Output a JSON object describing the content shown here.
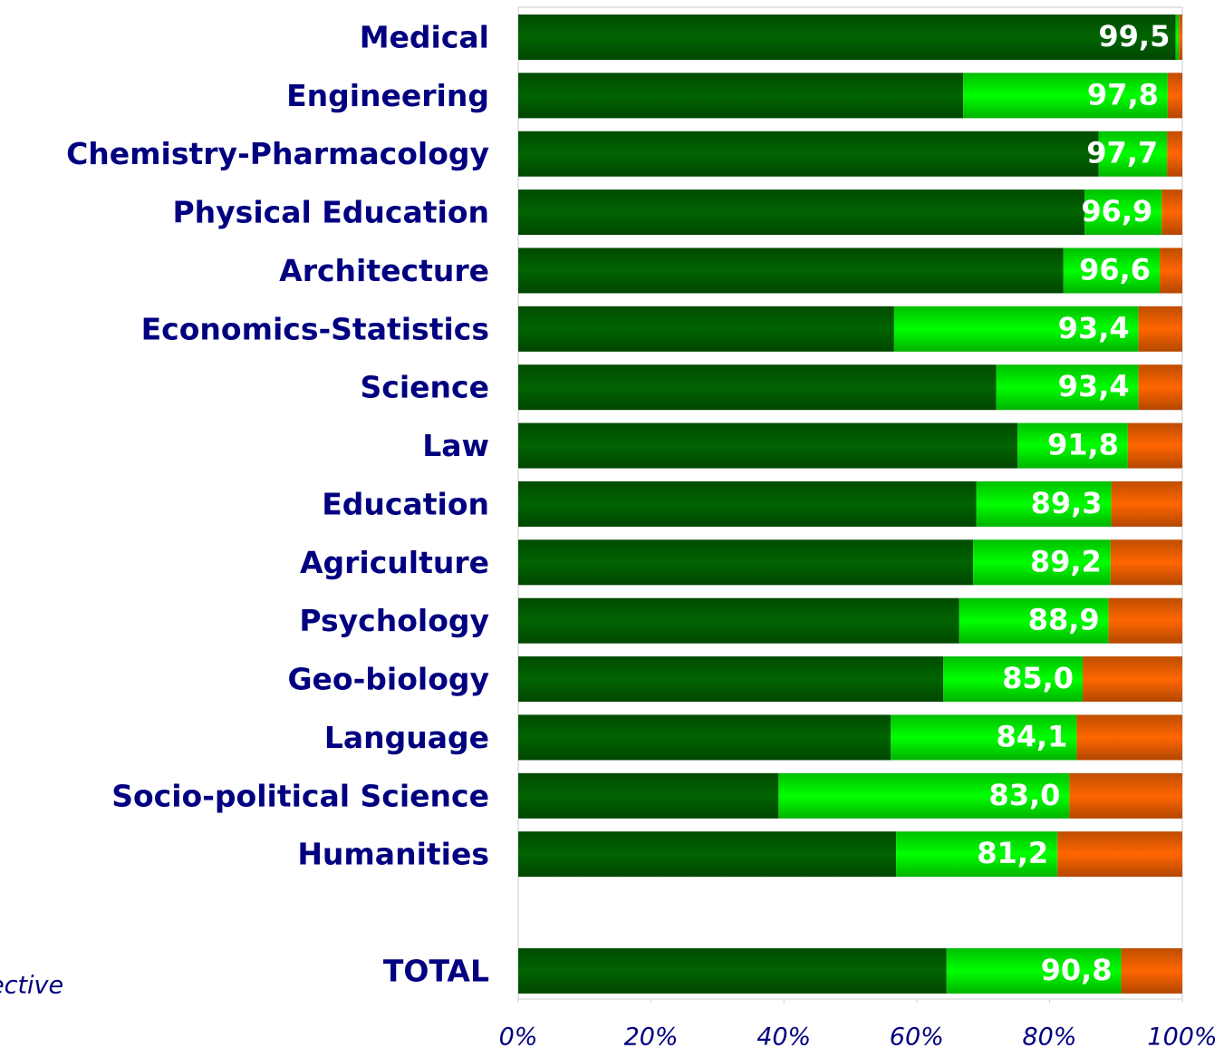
{
  "chart_data": {
    "type": "stacked-bar-horizontal",
    "categories": [
      "Medical",
      "Engineering",
      "Chemistry-Pharmacology",
      "Physical Education",
      "Architecture",
      "Economics-Statistics",
      "Science",
      "Law",
      "Education",
      "Agriculture",
      "Psychology",
      "Geo-biology",
      "Language",
      "Socio-political Science",
      "Humanities",
      null,
      "TOTAL"
    ],
    "series": [
      {
        "color": "#006400",
        "values": [
          99.0,
          67.0,
          87.4,
          85.3,
          82.1,
          56.6,
          72.0,
          75.2,
          69.0,
          68.5,
          66.4,
          64.0,
          56.1,
          39.2,
          56.9,
          null,
          64.5
        ]
      },
      {
        "color": "#00ff00",
        "values": [
          0.5,
          30.8,
          10.3,
          11.6,
          14.5,
          36.8,
          21.4,
          16.6,
          20.3,
          20.7,
          22.5,
          21.0,
          28.0,
          43.8,
          24.3,
          null,
          26.3
        ]
      },
      {
        "color": "#ff6600",
        "values": [
          0.5,
          2.2,
          2.3,
          3.1,
          3.4,
          6.6,
          6.6,
          8.2,
          10.7,
          10.8,
          11.1,
          15.0,
          15.9,
          17.0,
          18.8,
          null,
          9.2
        ]
      }
    ],
    "totals": {
      "values": [
        99.5,
        97.8,
        97.7,
        96.9,
        96.6,
        93.4,
        93.4,
        91.8,
        89.3,
        89.2,
        88.9,
        85.0,
        84.1,
        83.0,
        81.2,
        null,
        90.8
      ],
      "value_labels": [
        "99,5",
        "97,8",
        "97,7",
        "96,9",
        "96,6",
        "93,4",
        "93,4",
        "91,8",
        "89,3",
        "89,2",
        "88,9",
        "85,0",
        "84,1",
        "83,0",
        "81,2",
        null,
        "90,8"
      ]
    },
    "xlim": [
      0,
      100
    ],
    "xticks": [
      {
        "value": 0,
        "label": "0%"
      },
      {
        "value": 20,
        "label": "20%"
      },
      {
        "value": 40,
        "label": "40%"
      },
      {
        "value": 60,
        "label": "60%"
      },
      {
        "value": 80,
        "label": "80%"
      },
      {
        "value": 100,
        "label": "100%"
      }
    ],
    "annotation": "ective"
  }
}
